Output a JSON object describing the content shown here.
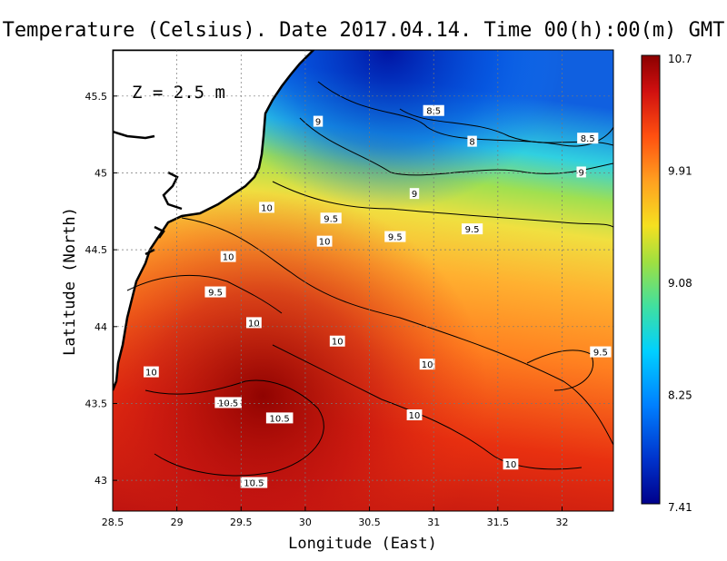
{
  "chart_data": {
    "type": "heatmap",
    "title": "Temperature (Celsius). Date 2017.04.14. Time 00(h):00(m) GMT",
    "xlabel": "Longitude (East)",
    "ylabel": "Latitude (North)",
    "xlim": [
      28.5,
      32.4
    ],
    "ylim": [
      42.8,
      45.8
    ],
    "x_ticks": [
      "28.5",
      "29",
      "29.5",
      "30",
      "30.5",
      "31",
      "31.5",
      "32"
    ],
    "y_ticks": [
      "43",
      "43.5",
      "44",
      "44.5",
      "45",
      "45.5"
    ],
    "grid": true,
    "depth_label": "Z = 2.5 m",
    "colorbar": {
      "min": 7.41,
      "max": 10.7,
      "tick_labels": [
        "10.7",
        "9.91",
        "9.08",
        "8.25",
        "7.41"
      ],
      "colors": [
        "#00008b",
        "#0033cc",
        "#0080ff",
        "#00d0ff",
        "#40e0a0",
        "#a0e040",
        "#f5e020",
        "#ffa020",
        "#ff5010",
        "#d01010",
        "#8b0000"
      ]
    },
    "contour_labels": [
      {
        "text": "8.5",
        "lon": 31.0,
        "lat": 45.4
      },
      {
        "text": "8",
        "lon": 31.3,
        "lat": 45.2
      },
      {
        "text": "8.5",
        "lon": 32.2,
        "lat": 45.22
      },
      {
        "text": "9",
        "lon": 30.1,
        "lat": 45.33
      },
      {
        "text": "9",
        "lon": 32.15,
        "lat": 45.0
      },
      {
        "text": "9",
        "lon": 30.85,
        "lat": 44.86
      },
      {
        "text": "9.5",
        "lon": 32.45,
        "lat": 44.72
      },
      {
        "text": "9.5",
        "lon": 30.2,
        "lat": 44.7
      },
      {
        "text": "9.5",
        "lon": 31.3,
        "lat": 44.63
      },
      {
        "text": "9.5",
        "lon": 30.7,
        "lat": 44.58
      },
      {
        "text": "10",
        "lon": 29.7,
        "lat": 44.77
      },
      {
        "text": "10",
        "lon": 30.15,
        "lat": 44.55
      },
      {
        "text": "10",
        "lon": 29.4,
        "lat": 44.45
      },
      {
        "text": "9.5",
        "lon": 29.3,
        "lat": 44.22
      },
      {
        "text": "10",
        "lon": 29.6,
        "lat": 44.02
      },
      {
        "text": "10",
        "lon": 30.25,
        "lat": 43.9
      },
      {
        "text": "9.5",
        "lon": 32.3,
        "lat": 43.83
      },
      {
        "text": "10",
        "lon": 28.8,
        "lat": 43.7
      },
      {
        "text": "10",
        "lon": 30.95,
        "lat": 43.75
      },
      {
        "text": "10.5",
        "lon": 29.4,
        "lat": 43.5
      },
      {
        "text": "10.5",
        "lon": 29.8,
        "lat": 43.4
      },
      {
        "text": "10",
        "lon": 30.85,
        "lat": 43.42
      },
      {
        "text": "10",
        "lon": 31.6,
        "lat": 43.1
      },
      {
        "text": "10.5",
        "lon": 29.6,
        "lat": 42.98
      }
    ]
  }
}
